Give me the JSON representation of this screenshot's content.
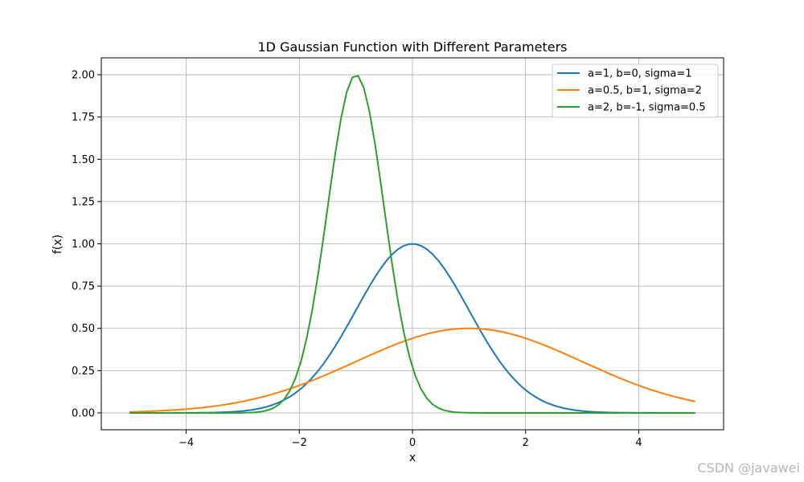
{
  "chart_data": {
    "type": "line",
    "title": "1D Gaussian Function with Different Parameters",
    "xlabel": "x",
    "ylabel": "f(x)",
    "xlim": [
      -5.5,
      5.5
    ],
    "ylim": [
      -0.1,
      2.1
    ],
    "xticks": [
      -4,
      -2,
      0,
      2,
      4
    ],
    "xtick_labels": [
      "−4",
      "−2",
      "0",
      "2",
      "4"
    ],
    "yticks": [
      0,
      0.25,
      0.5,
      0.75,
      1.0,
      1.25,
      1.5,
      1.75,
      2.0
    ],
    "ytick_labels": [
      "0.00",
      "0.25",
      "0.50",
      "0.75",
      "1.00",
      "1.25",
      "1.50",
      "1.75",
      "2.00"
    ],
    "grid": true,
    "legend_position": "top-right",
    "x_range": [
      -5,
      5
    ],
    "series": [
      {
        "name": "a=1, b=0, sigma=1",
        "color": "#1f77b4",
        "a": 1,
        "b": 0,
        "sigma": 1
      },
      {
        "name": "a=0.5, b=1, sigma=2",
        "color": "#ff7f0e",
        "a": 0.5,
        "b": 1,
        "sigma": 2
      },
      {
        "name": "a=2, b=-1, sigma=0.5",
        "color": "#2ca02c",
        "a": 2,
        "b": -1,
        "sigma": 0.5
      }
    ]
  },
  "watermark": "CSDN @javawei"
}
